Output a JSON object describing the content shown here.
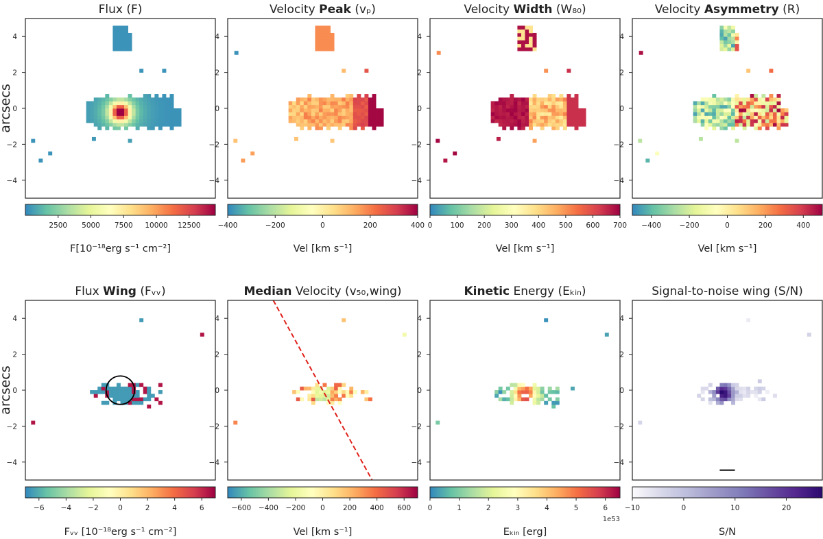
{
  "figure": {
    "ylabel": "arcsecs"
  },
  "chart_data": [
    {
      "type": "heatmap",
      "title_parts": [
        {
          "t": "Flux (F)",
          "b": false
        }
      ],
      "xlim": [
        -5,
        5
      ],
      "ylim": [
        -5,
        5
      ],
      "yticks": [
        -4,
        -2,
        0,
        2,
        4
      ],
      "colormap": "Spectral_r",
      "colorbar_range": [
        0,
        14500
      ],
      "colorbar_ticks": [
        "2500",
        "5000",
        "7500",
        "10000",
        "12500"
      ],
      "colorbar_label": "F[10⁻¹⁸erg s⁻¹ cm⁻²]",
      "offset_text": "",
      "pattern": "flux"
    },
    {
      "type": "heatmap",
      "title_parts": [
        {
          "t": "Velocity ",
          "b": false
        },
        {
          "t": "Peak",
          "b": true
        },
        {
          "t": " (vₚ)",
          "b": false
        }
      ],
      "xlim": [
        -5,
        5
      ],
      "ylim": [
        -5,
        5
      ],
      "yticks": [
        -4,
        -2,
        0,
        2,
        4
      ],
      "colormap": "Spectral_r",
      "colorbar_range": [
        -400,
        400
      ],
      "colorbar_ticks": [
        "−400",
        "−200",
        "0",
        "200",
        "400"
      ],
      "colorbar_label": "Vel [km s⁻¹]",
      "offset_text": "",
      "pattern": "vpeak"
    },
    {
      "type": "heatmap",
      "title_parts": [
        {
          "t": "Velocity ",
          "b": false
        },
        {
          "t": "Width",
          "b": true
        },
        {
          "t": " (W₈₀)",
          "b": false
        }
      ],
      "xlim": [
        -5,
        5
      ],
      "ylim": [
        -5,
        5
      ],
      "yticks": [
        -4,
        -2,
        0,
        2,
        4
      ],
      "colormap": "Spectral_r",
      "colorbar_range": [
        0,
        700
      ],
      "colorbar_ticks": [
        "0",
        "100",
        "200",
        "300",
        "400",
        "500",
        "600",
        "700"
      ],
      "colorbar_label": "Vel [km s⁻¹]",
      "offset_text": "",
      "pattern": "width"
    },
    {
      "type": "heatmap",
      "title_parts": [
        {
          "t": "Velocity ",
          "b": false
        },
        {
          "t": "Asymmetry",
          "b": true
        },
        {
          "t": " (R)",
          "b": false
        }
      ],
      "xlim": [
        -5,
        5
      ],
      "ylim": [
        -5,
        5
      ],
      "yticks": [
        -4,
        -2,
        0,
        2,
        4
      ],
      "colormap": "Spectral_r",
      "colorbar_range": [
        -500,
        500
      ],
      "colorbar_ticks": [
        "−400",
        "−200",
        "0",
        "200",
        "400"
      ],
      "colorbar_label": "Vel [km s⁻¹]",
      "offset_text": "",
      "pattern": "asym"
    },
    {
      "type": "heatmap",
      "title_parts": [
        {
          "t": "Flux ",
          "b": false
        },
        {
          "t": "Wing",
          "b": true
        },
        {
          "t": " (Fᵥᵥ)",
          "b": false
        }
      ],
      "xlim": [
        -5,
        5
      ],
      "ylim": [
        -5,
        5
      ],
      "yticks": [
        -4,
        -2,
        0,
        2,
        4
      ],
      "colormap": "Spectral_r",
      "colorbar_range": [
        -7,
        7
      ],
      "colorbar_ticks": [
        "−6",
        "−4",
        "−2",
        "0",
        "2",
        "4",
        "6"
      ],
      "colorbar_label": "Fᵥᵥ [10⁻¹⁸erg s⁻¹ cm⁻²]",
      "offset_text": "",
      "pattern": "fwing",
      "annotation": {
        "shape": "circle",
        "center": [
          0,
          0
        ],
        "radius_arcsec": 0.75
      }
    },
    {
      "type": "heatmap",
      "title_parts": [
        {
          "t": "Median",
          "b": true
        },
        {
          "t": " Velocity (v₅₀,wing)",
          "b": false
        }
      ],
      "xlim": [
        -5,
        5
      ],
      "ylim": [
        -5,
        5
      ],
      "yticks": [
        -4,
        -2,
        0,
        2,
        4
      ],
      "colormap": "Spectral_r",
      "colorbar_range": [
        -700,
        700
      ],
      "colorbar_ticks": [
        "−600",
        "−400",
        "−200",
        "0",
        "200",
        "400",
        "600"
      ],
      "colorbar_label": "Vel [km s⁻¹]",
      "offset_text": "",
      "pattern": "median",
      "annotation": {
        "shape": "dashed-line",
        "from": [
          -2.6,
          5
        ],
        "to": [
          2.6,
          -5
        ],
        "color": "#e0201a"
      }
    },
    {
      "type": "heatmap",
      "title_parts": [
        {
          "t": "Kinetic",
          "b": true
        },
        {
          "t": " Energy (Eₖᵢₙ)",
          "b": false
        }
      ],
      "xlim": [
        -5,
        5
      ],
      "ylim": [
        -5,
        5
      ],
      "yticks": [
        -4,
        -2,
        0,
        2,
        4
      ],
      "colormap": "Spectral_r",
      "colorbar_range": [
        0,
        6.5
      ],
      "colorbar_ticks": [
        "0",
        "1",
        "2",
        "3",
        "4",
        "5",
        "6"
      ],
      "colorbar_label": "Eₖᵢₙ [erg]",
      "offset_text": "1e53",
      "pattern": "ekin"
    },
    {
      "type": "heatmap",
      "title_parts": [
        {
          "t": "Signal-to-noise wing (S/N)",
          "b": false
        }
      ],
      "xlim": [
        -5,
        5
      ],
      "ylim": [
        -5,
        5
      ],
      "yticks": [
        -4,
        -2,
        0,
        2,
        4
      ],
      "colormap": "Purples",
      "colorbar_range": [
        -10,
        27
      ],
      "colorbar_ticks": [
        "−10",
        "0",
        "10",
        "20"
      ],
      "colorbar_label": "S/N",
      "offset_text": "",
      "pattern": "sn",
      "annotation": {
        "shape": "scale-bar",
        "from": [
          -0.4,
          -4.45
        ],
        "to": [
          0.4,
          -4.45
        ]
      }
    }
  ],
  "colors": {
    "frame": "#222222",
    "dashed": "#e0201a",
    "circle": "#000000"
  }
}
